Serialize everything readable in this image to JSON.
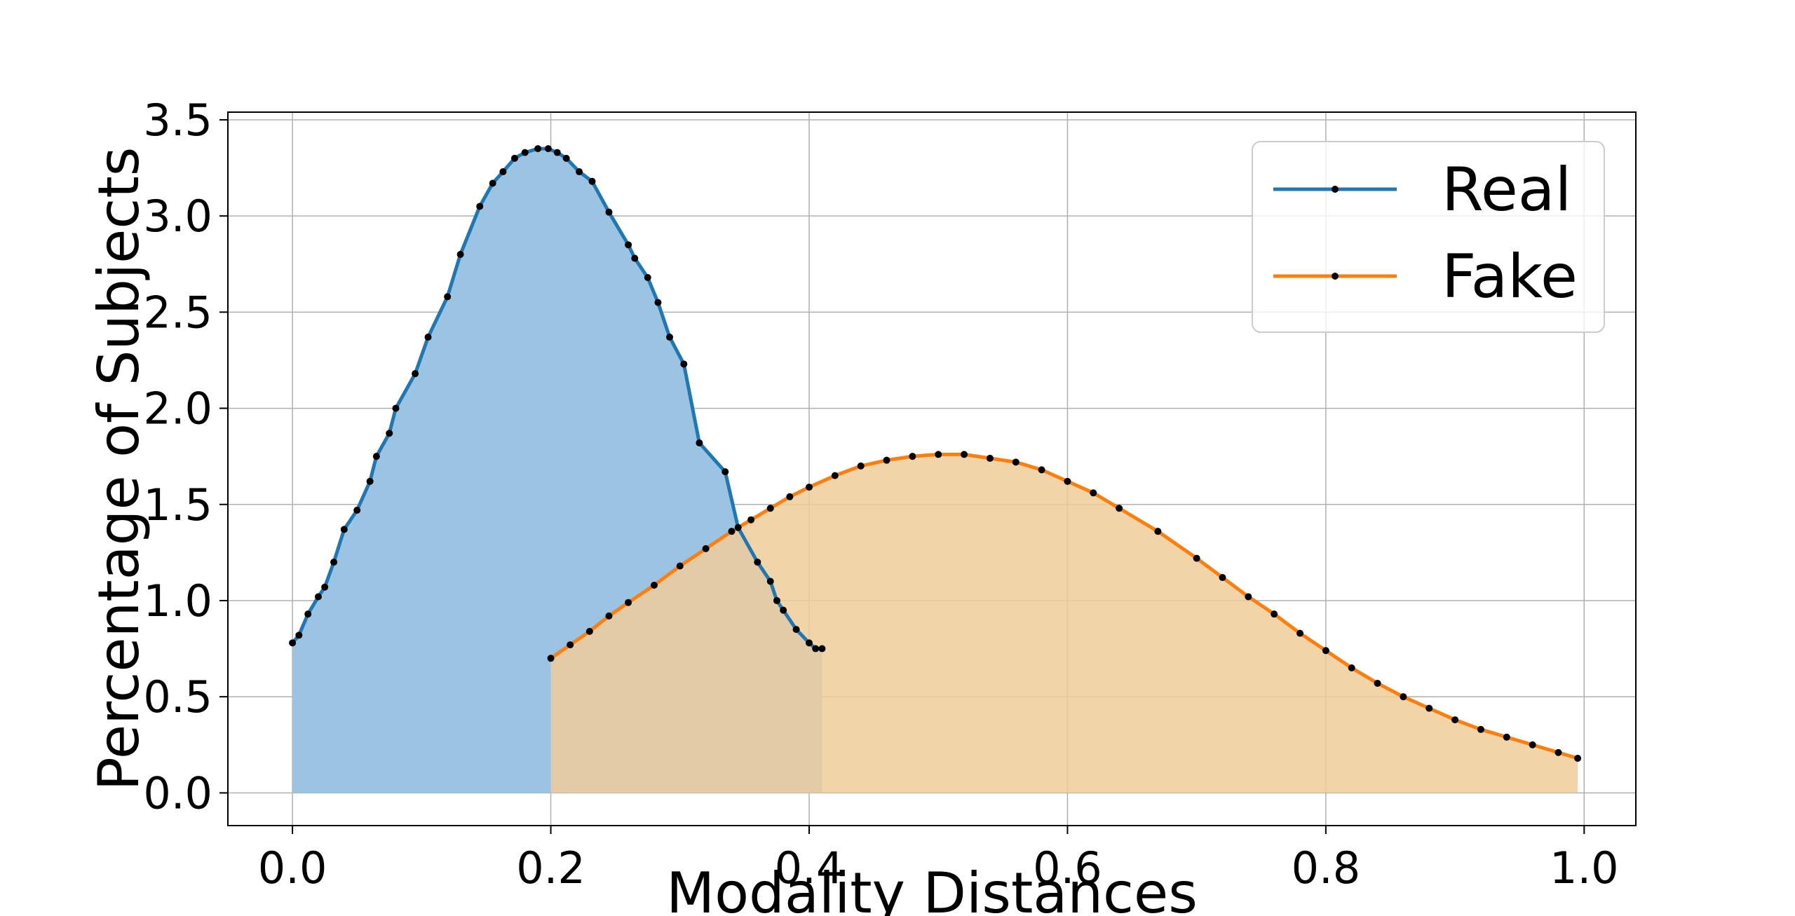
{
  "chart_data": {
    "type": "area",
    "title": "",
    "xlabel": "Modality Distances",
    "ylabel": "Percentage of Subjects",
    "xlim": [
      -0.05,
      1.04
    ],
    "ylim": [
      -0.17,
      3.54
    ],
    "xticks": [
      0.0,
      0.2,
      0.4,
      0.6,
      0.8,
      1.0
    ],
    "xtick_labels": [
      "0.0",
      "0.2",
      "0.4",
      "0.6",
      "0.8",
      "1.0"
    ],
    "yticks": [
      0.0,
      0.5,
      1.0,
      1.5,
      2.0,
      2.5,
      3.0,
      3.5
    ],
    "ytick_labels": [
      "0.0",
      "0.5",
      "1.0",
      "1.5",
      "2.0",
      "2.5",
      "3.0",
      "3.5"
    ],
    "grid": true,
    "legend_position": "top-right",
    "series": [
      {
        "name": "Real",
        "color": "#1f77b4",
        "fill_color": "#9bc4e2",
        "x": [
          0.0,
          0.005,
          0.012,
          0.02,
          0.025,
          0.032,
          0.04,
          0.05,
          0.06,
          0.065,
          0.075,
          0.08,
          0.095,
          0.105,
          0.12,
          0.13,
          0.145,
          0.155,
          0.163,
          0.172,
          0.18,
          0.19,
          0.198,
          0.205,
          0.212,
          0.222,
          0.232,
          0.245,
          0.26,
          0.265,
          0.275,
          0.283,
          0.292,
          0.303,
          0.315,
          0.335,
          0.345,
          0.36,
          0.37,
          0.375,
          0.38,
          0.39,
          0.4,
          0.405,
          0.41
        ],
        "y": [
          0.78,
          0.82,
          0.93,
          1.02,
          1.07,
          1.2,
          1.37,
          1.47,
          1.62,
          1.75,
          1.87,
          2.0,
          2.18,
          2.37,
          2.58,
          2.8,
          3.05,
          3.17,
          3.23,
          3.3,
          3.33,
          3.35,
          3.35,
          3.33,
          3.3,
          3.23,
          3.18,
          3.02,
          2.85,
          2.78,
          2.68,
          2.55,
          2.37,
          2.23,
          1.82,
          1.67,
          1.38,
          1.2,
          1.1,
          1.0,
          0.95,
          0.85,
          0.78,
          0.75,
          0.75
        ]
      },
      {
        "name": "Fake",
        "color": "#ff7f0e",
        "fill_color": "#f0cc9a",
        "x": [
          0.2,
          0.215,
          0.23,
          0.245,
          0.26,
          0.28,
          0.3,
          0.32,
          0.34,
          0.355,
          0.37,
          0.385,
          0.4,
          0.42,
          0.44,
          0.46,
          0.48,
          0.5,
          0.52,
          0.54,
          0.56,
          0.58,
          0.6,
          0.62,
          0.64,
          0.67,
          0.7,
          0.72,
          0.74,
          0.76,
          0.78,
          0.8,
          0.82,
          0.84,
          0.86,
          0.88,
          0.9,
          0.92,
          0.94,
          0.96,
          0.98,
          0.995
        ],
        "y": [
          0.7,
          0.77,
          0.84,
          0.92,
          0.99,
          1.08,
          1.18,
          1.27,
          1.36,
          1.42,
          1.48,
          1.54,
          1.59,
          1.65,
          1.7,
          1.73,
          1.75,
          1.76,
          1.76,
          1.74,
          1.72,
          1.68,
          1.62,
          1.56,
          1.48,
          1.36,
          1.22,
          1.12,
          1.02,
          0.93,
          0.83,
          0.74,
          0.65,
          0.57,
          0.5,
          0.44,
          0.38,
          0.33,
          0.29,
          0.25,
          0.21,
          0.18
        ]
      }
    ]
  }
}
